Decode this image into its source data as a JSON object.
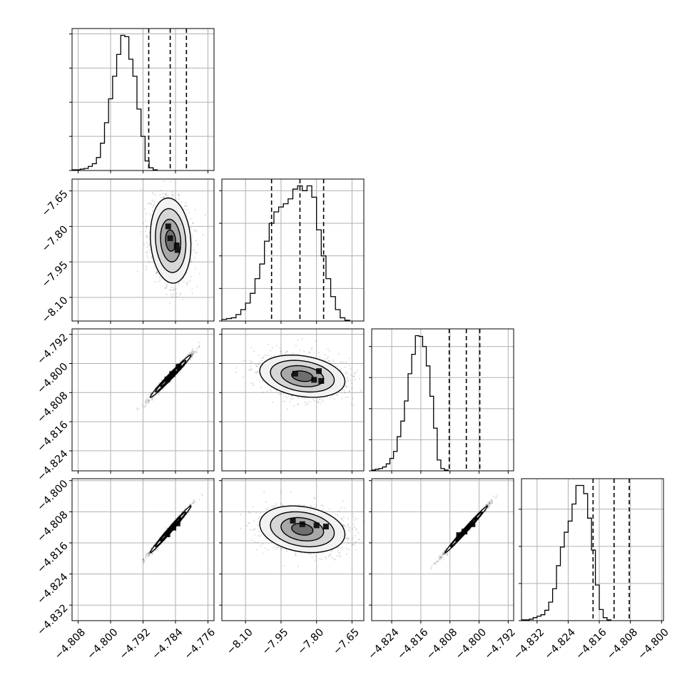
{
  "chart_data": {
    "type": "corner",
    "title": "",
    "parameters": [
      "",
      "",
      "",
      ""
    ],
    "colors": {
      "line": "#000000",
      "grid": "#b0b0b0",
      "scatter": "#000000",
      "background": "#ffffff"
    },
    "grid": true,
    "axes": [
      {
        "range": [
          -4.8095,
          -4.7745
        ],
        "ticks": [
          "-4.808",
          "-4.800",
          "-4.792",
          "-4.784",
          "-4.776"
        ]
      },
      {
        "range": [
          -8.2,
          -7.6
        ],
        "ticks": [
          "-8.10",
          "-7.95",
          "-7.80",
          "-7.65"
        ]
      },
      {
        "range": [
          -4.8295,
          -4.7905
        ],
        "ticks": [
          "-4.824",
          "-4.816",
          "-4.808",
          "-4.800",
          "-4.792"
        ]
      },
      {
        "range": [
          -4.836,
          -4.7995
        ],
        "ticks": [
          "-4.832",
          "-4.824",
          "-4.816",
          "-4.808",
          "-4.800"
        ]
      }
    ],
    "left_tick_labels": [
      [],
      [
        "-7.65",
        "-7.80",
        "-7.95",
        "-8.10"
      ],
      [
        "-4.792",
        "-4.800",
        "-4.808",
        "-4.816",
        "-4.824"
      ],
      [
        "-4.800",
        "-4.808",
        "-4.816",
        "-4.824",
        "-4.832"
      ]
    ],
    "bottom_tick_labels": [
      [
        "-4.808",
        "-4.800",
        "-4.792",
        "-4.784",
        "-4.776"
      ],
      [
        "-8.10",
        "-7.95",
        "-7.80",
        "-7.65"
      ],
      [
        "-4.824",
        "-4.816",
        "-4.808",
        "-4.800",
        "-4.792"
      ],
      [
        "-4.832",
        "-4.824",
        "-4.816",
        "-4.808",
        "-4.800"
      ]
    ],
    "histograms": [
      {
        "bin_edges_start": -4.8095,
        "bin_width": 0.001,
        "counts": [
          1,
          1,
          2,
          3,
          6,
          10,
          19,
          40,
          70,
          105,
          138,
          170,
          198,
          196,
          163,
          138,
          90,
          50,
          14,
          4,
          1
        ],
        "quantiles": [
          -4.7906,
          -4.7853,
          -4.7813
        ]
      },
      {
        "bin_edges_start": -8.2,
        "bin_width": 0.02,
        "counts": [
          2,
          3,
          4,
          8,
          14,
          22,
          34,
          52,
          70,
          98,
          120,
          134,
          140,
          144,
          150,
          162,
          166,
          160,
          166,
          152,
          112,
          80,
          52,
          30,
          14,
          4,
          1
        ],
        "quantiles": [
          -7.99,
          -7.87,
          -7.77
        ]
      },
      {
        "bin_edges_start": -4.8295,
        "bin_width": 0.001,
        "counts": [
          1,
          2,
          3,
          5,
          9,
          16,
          25,
          44,
          64,
          90,
          125,
          150,
          174,
          173,
          160,
          135,
          96,
          55,
          14,
          3,
          1
        ],
        "quantiles": [
          -4.8082,
          -4.8035,
          -4.7998
        ]
      },
      {
        "bin_edges_start": -4.836,
        "bin_width": 0.001,
        "counts": [
          1,
          1,
          2,
          4,
          6,
          8,
          14,
          25,
          43,
          74,
          99,
          119,
          134,
          157,
          182,
          182,
          171,
          138,
          95,
          48,
          15,
          4,
          1
        ],
        "quantiles": [
          -4.8176,
          -4.8122,
          -4.8083
        ]
      }
    ],
    "pairs": [
      {
        "row": 1,
        "col": 0,
        "center": [
          -4.7852,
          -7.86
        ],
        "sd": [
          0.0025,
          0.09
        ],
        "rho": -0.12,
        "peaks": [
          [
            -4.7858,
            -7.8
          ],
          [
            -4.7853,
            -7.85
          ],
          [
            -4.7837,
            -7.88
          ],
          [
            -4.7835,
            -7.9
          ]
        ]
      },
      {
        "row": 2,
        "col": 0,
        "center": [
          -4.7852,
          -4.8035
        ],
        "sd": [
          0.0025,
          0.0029
        ],
        "rho": 0.985,
        "peaks": [
          [
            -4.786,
            -4.8044
          ],
          [
            -4.7848,
            -4.8029
          ],
          [
            -4.7832,
            -4.8009
          ]
        ]
      },
      {
        "row": 2,
        "col": 1,
        "center": [
          -7.86,
          -4.8035
        ],
        "sd": [
          0.09,
          0.0029
        ],
        "rho": -0.25,
        "peaks": [
          [
            -7.89,
            -4.8028
          ],
          [
            -7.81,
            -4.8045
          ],
          [
            -7.78,
            -4.8048
          ],
          [
            -7.79,
            -4.8021
          ]
        ]
      },
      {
        "row": 3,
        "col": 0,
        "center": [
          -4.7852,
          -4.8125
        ],
        "sd": [
          0.0025,
          0.003
        ],
        "rho": 0.99,
        "peaks": [
          [
            -4.786,
            -4.8138
          ],
          [
            -4.7845,
            -4.8121
          ],
          [
            -4.7835,
            -4.811
          ]
        ]
      },
      {
        "row": 3,
        "col": 1,
        "center": [
          -7.86,
          -4.8125
        ],
        "sd": [
          0.09,
          0.003
        ],
        "rho": -0.22,
        "peaks": [
          [
            -7.9,
            -4.8103
          ],
          [
            -7.86,
            -4.8112
          ],
          [
            -7.8,
            -4.8115
          ],
          [
            -7.76,
            -4.8118
          ]
        ]
      },
      {
        "row": 3,
        "col": 2,
        "center": [
          -4.8035,
          -4.8125
        ],
        "sd": [
          0.0029,
          0.003
        ],
        "rho": 0.992,
        "peaks": [
          [
            -4.8055,
            -4.814
          ],
          [
            -4.804,
            -4.8131
          ],
          [
            -4.8018,
            -4.8112
          ]
        ]
      }
    ],
    "contour_levels": [
      0.5,
      1.0,
      1.5,
      2.0
    ]
  }
}
